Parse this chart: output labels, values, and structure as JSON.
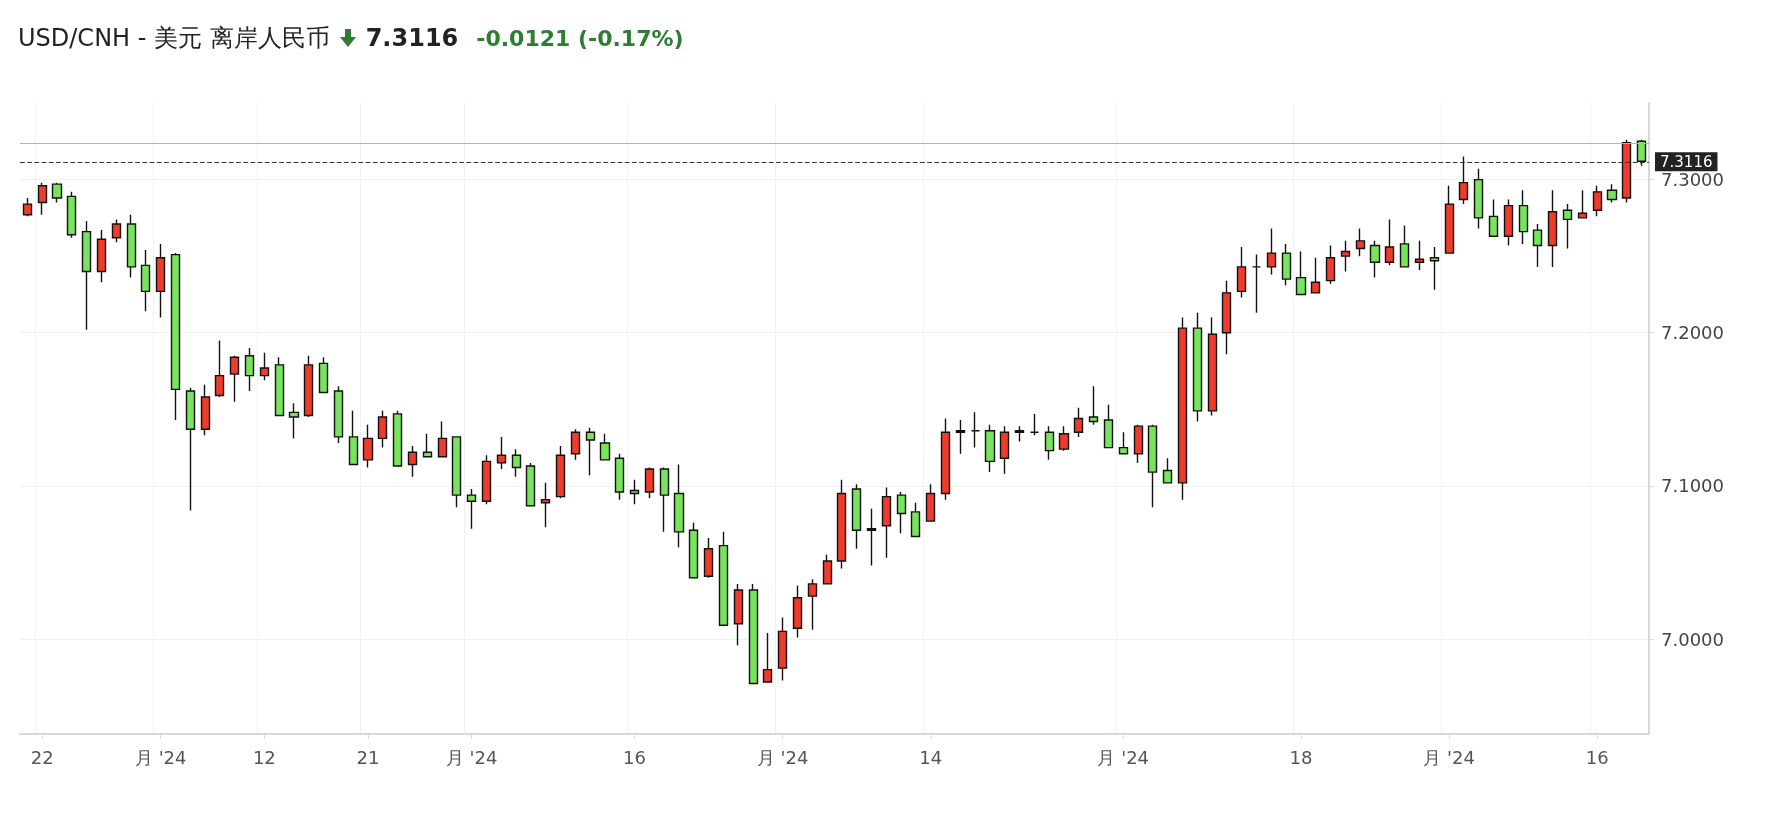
{
  "chart_data": {
    "type": "candlestick",
    "title": "USD/CNH - 美元 离岸人民币",
    "annotations": [
      "7.3116",
      "-0.0121 (-0.17%)"
    ],
    "categories": [
      null,
      "22",
      null,
      null,
      null,
      null,
      null,
      null,
      null,
      "月 '24",
      null,
      null,
      null,
      null,
      null,
      null,
      "12",
      null,
      null,
      null,
      null,
      null,
      null,
      "21",
      null,
      null,
      null,
      null,
      null,
      null,
      "月 '24",
      null,
      null,
      null,
      null,
      null,
      null,
      null,
      null,
      null,
      null,
      "16",
      null,
      null,
      null,
      null,
      null,
      null,
      null,
      null,
      null,
      "月 '24",
      null,
      null,
      null,
      null,
      null,
      null,
      null,
      null,
      null,
      "14",
      null,
      null,
      null,
      null,
      null,
      null,
      null,
      null,
      null,
      null,
      null,
      null,
      "月 '24",
      null,
      null,
      null,
      null,
      null,
      null,
      null,
      null,
      null,
      null,
      null,
      "18",
      null,
      null,
      null,
      null,
      null,
      null,
      null,
      null,
      null,
      "月 '24",
      null,
      null,
      null,
      null,
      null,
      null,
      null,
      null,
      null,
      "16",
      null,
      null,
      null
    ],
    "ohlc": [
      [
        7.277,
        7.288,
        7.276,
        7.284
      ],
      [
        7.285,
        7.298,
        7.277,
        7.296
      ],
      [
        7.297,
        7.298,
        7.285,
        7.288
      ],
      [
        7.289,
        7.292,
        7.262,
        7.264
      ],
      [
        7.266,
        7.273,
        7.202,
        7.24
      ],
      [
        7.24,
        7.267,
        7.233,
        7.261
      ],
      [
        7.262,
        7.274,
        7.259,
        7.271
      ],
      [
        7.271,
        7.277,
        7.236,
        7.243
      ],
      [
        7.244,
        7.254,
        7.214,
        7.227
      ],
      [
        7.227,
        7.258,
        7.21,
        7.249
      ],
      [
        7.251,
        7.252,
        7.143,
        7.163
      ],
      [
        7.162,
        7.164,
        7.084,
        7.137
      ],
      [
        7.137,
        7.166,
        7.133,
        7.158
      ],
      [
        7.159,
        7.195,
        7.158,
        7.172
      ],
      [
        7.173,
        7.185,
        7.155,
        7.184
      ],
      [
        7.185,
        7.19,
        7.162,
        7.172
      ],
      [
        7.172,
        7.187,
        7.169,
        7.177
      ],
      [
        7.179,
        7.184,
        7.146,
        7.146
      ],
      [
        7.148,
        7.154,
        7.131,
        7.145
      ],
      [
        7.146,
        7.185,
        7.145,
        7.179
      ],
      [
        7.18,
        7.184,
        7.161,
        7.161
      ],
      [
        7.162,
        7.165,
        7.128,
        7.132
      ],
      [
        7.132,
        7.149,
        7.114,
        7.114
      ],
      [
        7.117,
        7.14,
        7.112,
        7.131
      ],
      [
        7.131,
        7.149,
        7.125,
        7.145
      ],
      [
        7.147,
        7.149,
        7.113,
        7.113
      ],
      [
        7.114,
        7.126,
        7.106,
        7.122
      ],
      [
        7.122,
        7.134,
        7.119,
        7.119
      ],
      [
        7.119,
        7.142,
        7.119,
        7.131
      ],
      [
        7.132,
        7.132,
        7.086,
        7.094
      ],
      [
        7.094,
        7.098,
        7.072,
        7.09
      ],
      [
        7.09,
        7.12,
        7.088,
        7.116
      ],
      [
        7.115,
        7.132,
        7.111,
        7.12
      ],
      [
        7.12,
        7.124,
        7.106,
        7.112
      ],
      [
        7.113,
        7.115,
        7.087,
        7.087
      ],
      [
        7.089,
        7.102,
        7.073,
        7.091
      ],
      [
        7.093,
        7.126,
        7.092,
        7.12
      ],
      [
        7.121,
        7.137,
        7.117,
        7.135
      ],
      [
        7.135,
        7.138,
        7.107,
        7.13
      ],
      [
        7.128,
        7.134,
        7.117,
        7.117
      ],
      [
        7.118,
        7.121,
        7.091,
        7.096
      ],
      [
        7.097,
        7.104,
        7.088,
        7.095
      ],
      [
        7.096,
        7.112,
        7.092,
        7.111
      ],
      [
        7.111,
        7.112,
        7.07,
        7.094
      ],
      [
        7.095,
        7.114,
        7.06,
        7.07
      ],
      [
        7.071,
        7.076,
        7.04,
        7.04
      ],
      [
        7.041,
        7.066,
        7.04,
        7.059
      ],
      [
        7.061,
        7.07,
        7.009,
        7.009
      ],
      [
        7.01,
        7.036,
        6.996,
        7.032
      ],
      [
        7.032,
        7.036,
        6.971,
        6.971
      ],
      [
        6.972,
        7.004,
        6.972,
        6.98
      ],
      [
        6.981,
        7.014,
        6.973,
        7.005
      ],
      [
        7.007,
        7.035,
        7.001,
        7.027
      ],
      [
        7.028,
        7.039,
        7.006,
        7.036
      ],
      [
        7.036,
        7.055,
        7.036,
        7.051
      ],
      [
        7.051,
        7.104,
        7.046,
        7.095
      ],
      [
        7.098,
        7.101,
        7.059,
        7.071
      ],
      [
        7.071,
        7.085,
        7.048,
        7.072
      ],
      [
        7.074,
        7.099,
        7.053,
        7.093
      ],
      [
        7.094,
        7.096,
        7.069,
        7.082
      ],
      [
        7.083,
        7.089,
        7.067,
        7.067
      ],
      [
        7.077,
        7.101,
        7.077,
        7.095
      ],
      [
        7.095,
        7.144,
        7.091,
        7.135
      ],
      [
        7.135,
        7.143,
        7.121,
        7.136
      ],
      [
        7.136,
        7.148,
        7.125,
        7.136
      ],
      [
        7.136,
        7.14,
        7.109,
        7.116
      ],
      [
        7.118,
        7.139,
        7.108,
        7.135
      ],
      [
        7.135,
        7.139,
        7.129,
        7.136
      ],
      [
        7.135,
        7.147,
        7.133,
        7.135
      ],
      [
        7.135,
        7.139,
        7.117,
        7.123
      ],
      [
        7.124,
        7.139,
        7.123,
        7.134
      ],
      [
        7.135,
        7.151,
        7.132,
        7.144
      ],
      [
        7.145,
        7.165,
        7.14,
        7.142
      ],
      [
        7.143,
        7.153,
        7.125,
        7.125
      ],
      [
        7.125,
        7.135,
        7.121,
        7.121
      ],
      [
        7.121,
        7.14,
        7.115,
        7.139
      ],
      [
        7.139,
        7.14,
        7.086,
        7.109
      ],
      [
        7.11,
        7.118,
        7.102,
        7.102
      ],
      [
        7.102,
        7.21,
        7.091,
        7.203
      ],
      [
        7.203,
        7.213,
        7.142,
        7.149
      ],
      [
        7.149,
        7.21,
        7.146,
        7.199
      ],
      [
        7.2,
        7.234,
        7.186,
        7.226
      ],
      [
        7.227,
        7.256,
        7.223,
        7.243
      ],
      [
        7.243,
        7.251,
        7.213,
        7.243
      ],
      [
        7.243,
        7.268,
        7.238,
        7.252
      ],
      [
        7.252,
        7.258,
        7.231,
        7.235
      ],
      [
        7.236,
        7.253,
        7.225,
        7.225
      ],
      [
        7.226,
        7.249,
        7.226,
        7.233
      ],
      [
        7.234,
        7.257,
        7.232,
        7.249
      ],
      [
        7.25,
        7.26,
        7.24,
        7.253
      ],
      [
        7.255,
        7.268,
        7.25,
        7.26
      ],
      [
        7.257,
        7.26,
        7.236,
        7.246
      ],
      [
        7.246,
        7.274,
        7.244,
        7.256
      ],
      [
        7.258,
        7.27,
        7.243,
        7.243
      ],
      [
        7.246,
        7.26,
        7.241,
        7.248
      ],
      [
        7.249,
        7.256,
        7.228,
        7.247
      ],
      [
        7.252,
        7.296,
        7.252,
        7.284
      ],
      [
        7.287,
        7.315,
        7.284,
        7.298
      ],
      [
        7.3,
        7.307,
        7.268,
        7.275
      ],
      [
        7.276,
        7.287,
        7.263,
        7.263
      ],
      [
        7.263,
        7.287,
        7.257,
        7.283
      ],
      [
        7.283,
        7.293,
        7.258,
        7.266
      ],
      [
        7.267,
        7.271,
        7.243,
        7.257
      ],
      [
        7.257,
        7.293,
        7.243,
        7.279
      ],
      [
        7.28,
        7.284,
        7.255,
        7.274
      ],
      [
        7.275,
        7.293,
        7.275,
        7.278
      ],
      [
        7.28,
        7.296,
        7.276,
        7.292
      ],
      [
        7.293,
        7.297,
        7.285,
        7.287
      ],
      [
        7.288,
        7.326,
        7.285,
        7.324
      ],
      [
        7.325,
        7.326,
        7.309,
        7.312
      ]
    ],
    "ylim": [
      6.938,
      7.35
    ],
    "yticks": [
      {
        "value": 7.0,
        "label": "7.0000"
      },
      {
        "value": 7.1,
        "label": "7.1000"
      },
      {
        "value": 7.2,
        "label": "7.2000"
      },
      {
        "value": 7.3,
        "label": "7.3000"
      }
    ],
    "ref_lines": [
      {
        "axis": "y",
        "value": 7.3235,
        "color": "#f29a9a",
        "line_style": "solid"
      },
      {
        "axis": "y",
        "value": 7.3116,
        "label": "7.3116",
        "color": "#333333",
        "line_style": "dashed"
      }
    ],
    "grid": true
  }
}
